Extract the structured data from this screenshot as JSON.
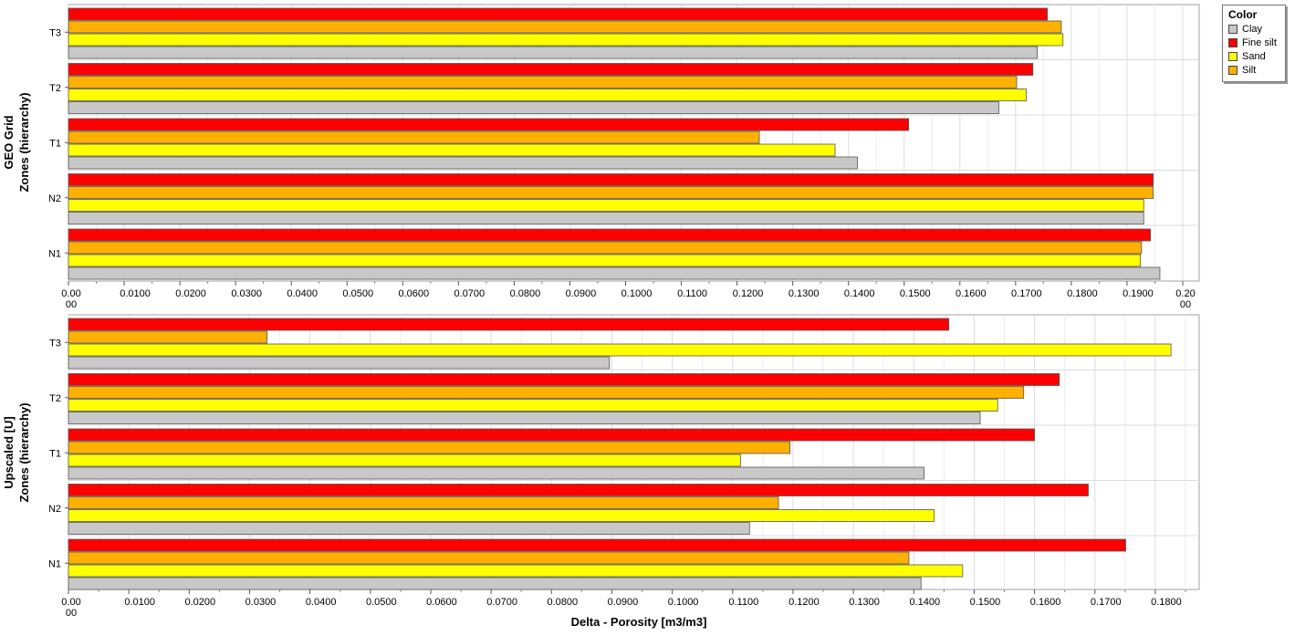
{
  "chart_data": [
    {
      "type": "bar",
      "orientation": "horizontal",
      "ylabel_lines": [
        "GEO Grid",
        "Zones (hierarchy)"
      ],
      "xlabel": "",
      "categories": [
        "T3",
        "T2",
        "T1",
        "N2",
        "N1"
      ],
      "xlim": [
        0,
        0.2
      ],
      "x_ticks": [
        "0.00\n00",
        "0.0100",
        "0.0200",
        "0.0300",
        "0.0400",
        "0.0500",
        "0.0600",
        "0.0700",
        "0.0800",
        "0.0900",
        "0.1000",
        "0.1100",
        "0.1200",
        "0.1300",
        "0.1400",
        "0.1500",
        "0.1600",
        "0.1700",
        "0.1800",
        "0.1900",
        "0.20\n00"
      ],
      "grid": true,
      "series": [
        {
          "name": "Fine silt",
          "values": [
            0.1757,
            0.1731,
            0.1508,
            0.1947,
            0.1942
          ]
        },
        {
          "name": "Silt",
          "values": [
            0.1782,
            0.1702,
            0.124,
            0.1947,
            0.1926
          ]
        },
        {
          "name": "Sand",
          "values": [
            0.1785,
            0.1719,
            0.1376,
            0.193,
            0.1924
          ]
        },
        {
          "name": "Clay",
          "values": [
            0.1739,
            0.167,
            0.1416,
            0.193,
            0.1959
          ]
        }
      ]
    },
    {
      "type": "bar",
      "orientation": "horizontal",
      "ylabel_lines": [
        "Upscaled [U]",
        "Zones (hierarchy)"
      ],
      "xlabel": "Delta - Porosity [m3/m3]",
      "categories": [
        "T3",
        "T2",
        "T1",
        "N2",
        "N1"
      ],
      "xlim": [
        0,
        0.185
      ],
      "x_ticks": [
        "0.00\n00",
        "0.0100",
        "0.0200",
        "0.0300",
        "0.0400",
        "0.0500",
        "0.0600",
        "0.0700",
        "0.0800",
        "0.0900",
        "0.1000",
        "0.1100",
        "0.1200",
        "0.1300",
        "0.1400",
        "0.1500",
        "0.1600",
        "0.1700",
        "0.1800"
      ],
      "grid": true,
      "series": [
        {
          "name": "Fine silt",
          "values": [
            0.1458,
            0.1641,
            0.16,
            0.1689,
            0.1751
          ]
        },
        {
          "name": "Silt",
          "values": [
            0.0329,
            0.1582,
            0.1195,
            0.1176,
            0.1392
          ]
        },
        {
          "name": "Sand",
          "values": [
            0.1826,
            0.1539,
            0.1113,
            0.1434,
            0.1481
          ]
        },
        {
          "name": "Clay",
          "values": [
            0.0896,
            0.151,
            0.1417,
            0.1128,
            0.1412
          ]
        }
      ]
    }
  ],
  "legend": {
    "title": "Color",
    "placement": "top-right",
    "items": [
      {
        "label": "Clay",
        "color": "#c8c8c8"
      },
      {
        "label": "Fine silt",
        "color": "#ff0000"
      },
      {
        "label": "Sand",
        "color": "#ffff00"
      },
      {
        "label": "Silt",
        "color": "#ffb000"
      }
    ]
  },
  "series_colors": {
    "Fine silt": "#ff0000",
    "Silt": "#ffb000",
    "Sand": "#ffff00",
    "Clay": "#c8c8c8"
  }
}
